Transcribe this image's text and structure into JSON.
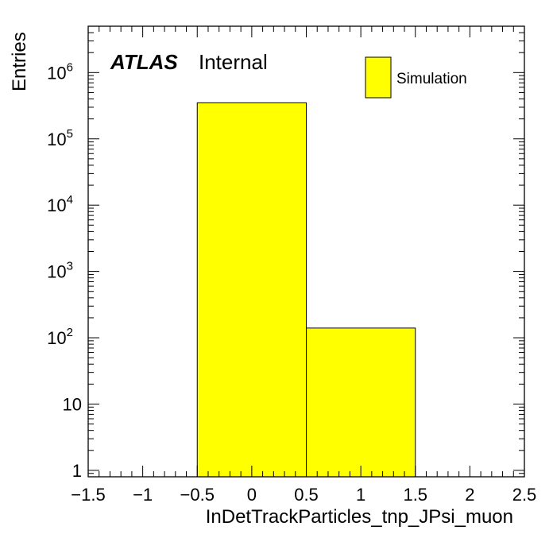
{
  "chart_data": {
    "type": "bar",
    "subtype": "histogram",
    "xlabel": "InDetTrackParticles_tnp_JPsi_muon",
    "ylabel": "Entries",
    "xlim": [
      -1.5,
      2.5
    ],
    "ylim": [
      0.8,
      5000000
    ],
    "yscale": "log",
    "grid": false,
    "x_ticks": [
      -1.5,
      -1,
      -0.5,
      0,
      0.5,
      1,
      1.5,
      2,
      2.5
    ],
    "x_tick_labels": [
      "−1.5",
      "−1",
      "−0.5",
      "0",
      "0.5",
      "1",
      "1.5",
      "2",
      "2.5"
    ],
    "y_ticks": [
      {
        "value": 1,
        "base": "1",
        "exp": ""
      },
      {
        "value": 10,
        "base": "10",
        "exp": ""
      },
      {
        "value": 100,
        "base": "10",
        "exp": "2"
      },
      {
        "value": 1000,
        "base": "10",
        "exp": "3"
      },
      {
        "value": 10000,
        "base": "10",
        "exp": "4"
      },
      {
        "value": 100000,
        "base": "10",
        "exp": "5"
      },
      {
        "value": 1000000,
        "base": "10",
        "exp": "6"
      }
    ],
    "bins": [
      {
        "low": -0.5,
        "high": 0.5,
        "value": 350000
      },
      {
        "low": 0.5,
        "high": 1.5,
        "value": 140
      }
    ],
    "fill_color": "#ffff00",
    "legend": {
      "label": "Simulation",
      "position": "top-right"
    },
    "annotation": {
      "bold": "ATLAS",
      "text": "Internal",
      "position": "top-left"
    }
  }
}
